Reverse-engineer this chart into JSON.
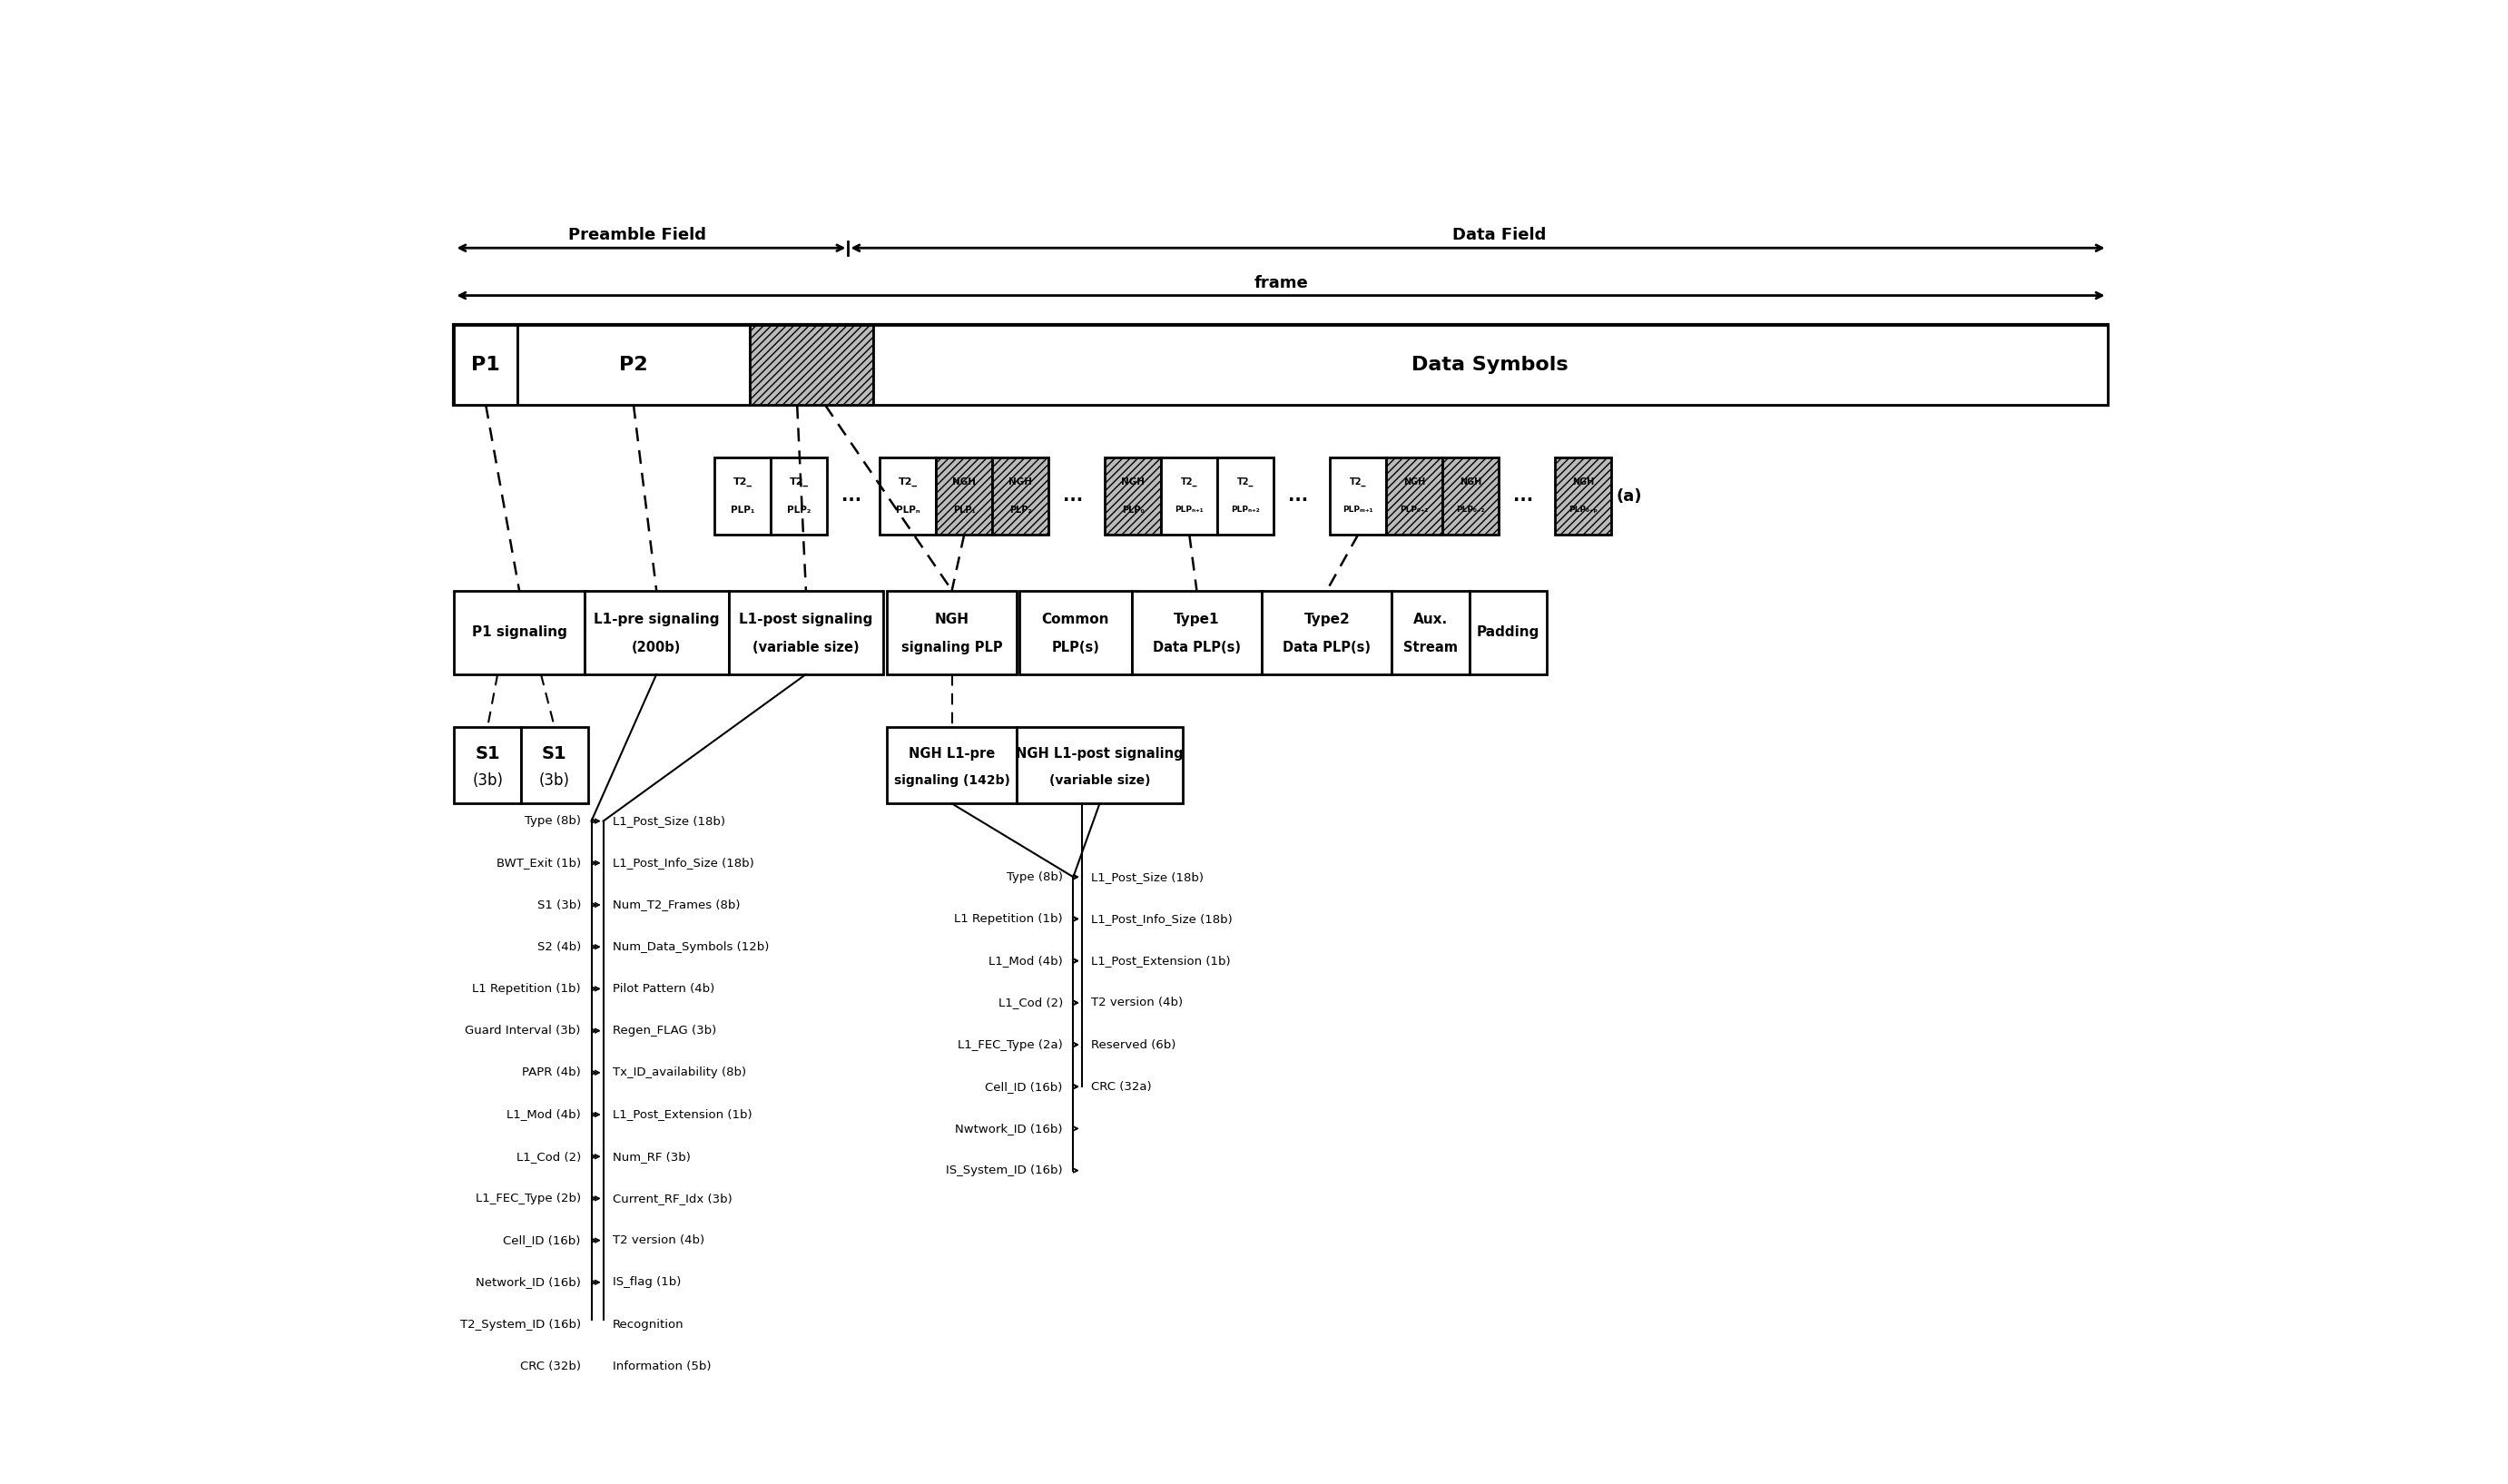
{
  "bg": "#ffffff",
  "fw": 27.63,
  "fh": 16.35,
  "lc_items": [
    "Type (8b)",
    "BWT_Exit (1b)",
    "S1 (3b)",
    "S2 (4b)",
    "L1 Repetition (1b)",
    "Guard Interval (3b)",
    "PAPR (4b)",
    "L1_Mod (4b)",
    "L1_Cod (2)",
    "L1_FEC_Type (2b)",
    "Cell_ID (16b)",
    "Network_ID (16b)",
    "T2_System_ID (16b)",
    "CRC (32b)"
  ],
  "rc_items": [
    "L1_Post_Size (18b)",
    "L1_Post_Info_Size (18b)",
    "Num_T2_Frames (8b)",
    "Num_Data_Symbols (12b)",
    "Pilot Pattern (4b)",
    "Regen_FLAG (3b)",
    "Tx_ID_availability (8b)",
    "L1_Post_Extension (1b)",
    "Num_RF (3b)",
    "Current_RF_Idx (3b)",
    "T2 version (4b)",
    "IS_flag (1b)",
    "Recognition",
    "Information (5b)"
  ],
  "ml_items": [
    "Type (8b)",
    "L1 Repetition (1b)",
    "L1_Mod (4b)",
    "L1_Cod (2)",
    "L1_FEC_Type (2a)",
    "Cell_ID (16b)",
    "Nwtwork_ID (16b)",
    "IS_System_ID (16b)"
  ],
  "mr_items": [
    "L1_Post_Size (18b)",
    "L1_Post_Info_Size (18b)",
    "L1_Post_Extension (1b)",
    "T2 version (4b)",
    "Reserved (6b)",
    "CRC (32a)"
  ]
}
